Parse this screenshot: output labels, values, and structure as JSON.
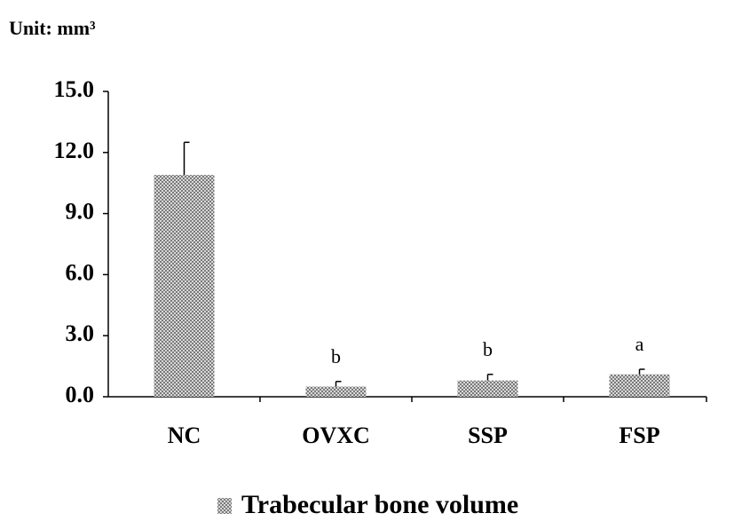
{
  "chart_data": {
    "type": "bar",
    "unit_label": "Unit: mm³",
    "categories": [
      "NC",
      "OVXC",
      "SSP",
      "FSP"
    ],
    "series": [
      {
        "name": "Trabecular bone volume",
        "color": "#7a7a7a",
        "values": [
          10.9,
          0.5,
          0.8,
          1.1
        ],
        "errors": [
          1.6,
          0.25,
          0.3,
          0.25
        ]
      }
    ],
    "annotations": [
      null,
      "b",
      "b",
      "a"
    ],
    "ylim": [
      0,
      15
    ],
    "yticks": [
      {
        "value": 0,
        "label": "0.0"
      },
      {
        "value": 3,
        "label": "3.0"
      },
      {
        "value": 6,
        "label": "6.0"
      },
      {
        "value": 9,
        "label": "9.0"
      },
      {
        "value": 12,
        "label": "12.0"
      },
      {
        "value": 15,
        "label": "15.0"
      }
    ]
  }
}
